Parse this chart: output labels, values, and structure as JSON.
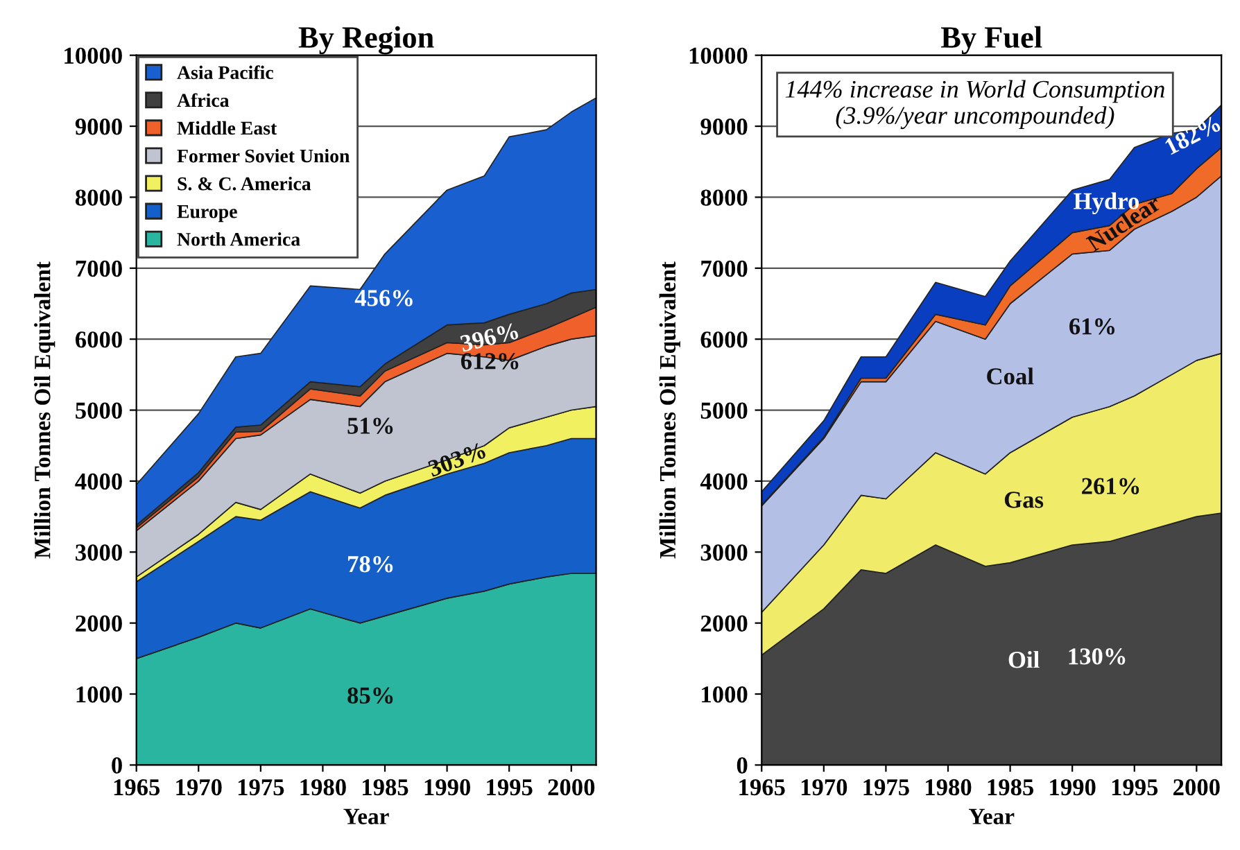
{
  "chart_data": [
    {
      "type": "area",
      "title": "By Region",
      "xlabel": "Year",
      "ylabel": "Million Tonnes Oil Equivalent",
      "stacked": true,
      "legend": "top left",
      "grid": "y",
      "x": [
        1965,
        1970,
        1973,
        1975,
        1979,
        1983,
        1985,
        1990,
        1993,
        1995,
        1998,
        2000,
        2002
      ],
      "xlim": [
        1965,
        2002
      ],
      "xticks": [
        1965,
        1970,
        1975,
        1980,
        1985,
        1990,
        1995,
        2000
      ],
      "ylim": [
        0,
        10000
      ],
      "yticks": [
        0,
        1000,
        2000,
        3000,
        4000,
        5000,
        6000,
        7000,
        8000,
        9000,
        10000
      ],
      "series": [
        {
          "name": "North America",
          "color": "#2ab5a0",
          "values": [
            1500,
            1800,
            2000,
            1930,
            2200,
            2000,
            2100,
            2350,
            2450,
            2550,
            2650,
            2700,
            2700
          ]
        },
        {
          "name": "Europe",
          "color": "#1560c8",
          "values": [
            1080,
            1350,
            1500,
            1520,
            1650,
            1620,
            1700,
            1750,
            1800,
            1850,
            1850,
            1900,
            1900
          ]
        },
        {
          "name": "S. & C. America",
          "color": "#f0f060",
          "values": [
            70,
            100,
            200,
            150,
            250,
            210,
            200,
            200,
            250,
            350,
            400,
            400,
            450
          ]
        },
        {
          "name": "Former Soviet Union",
          "color": "#c0c4d0",
          "values": [
            650,
            750,
            900,
            1050,
            1050,
            1220,
            1400,
            1500,
            1250,
            950,
            1000,
            1000,
            1000
          ]
        },
        {
          "name": "Middle East",
          "color": "#f0602a",
          "values": [
            40,
            60,
            90,
            50,
            150,
            150,
            150,
            150,
            170,
            250,
            250,
            300,
            400
          ]
        },
        {
          "name": "Africa",
          "color": "#404040",
          "values": [
            40,
            60,
            70,
            90,
            100,
            130,
            100,
            250,
            310,
            400,
            350,
            350,
            250
          ]
        },
        {
          "name": "Asia Pacific",
          "color": "#1a5fd0",
          "values": [
            570,
            830,
            990,
            1010,
            1350,
            1370,
            1550,
            1900,
            2070,
            2500,
            2450,
            2550,
            2700
          ]
        }
      ],
      "annotations": [
        "456%",
        "396%",
        "612%",
        "51%",
        "303%",
        "78%",
        "85%"
      ]
    },
    {
      "type": "area",
      "title": "By Fuel",
      "xlabel": "Year",
      "ylabel": "Million Tonnes Oil Equivalent",
      "stacked": true,
      "grid": "y",
      "x": [
        1965,
        1970,
        1973,
        1975,
        1979,
        1983,
        1985,
        1990,
        1993,
        1995,
        1998,
        2000,
        2002
      ],
      "xlim": [
        1965,
        2002
      ],
      "xticks": [
        1965,
        1970,
        1975,
        1980,
        1985,
        1990,
        1995,
        2000
      ],
      "ylim": [
        0,
        10000
      ],
      "yticks": [
        0,
        1000,
        2000,
        3000,
        4000,
        5000,
        6000,
        7000,
        8000,
        9000,
        10000
      ],
      "series": [
        {
          "name": "Oil",
          "color": "#454545",
          "values": [
            1550,
            2200,
            2750,
            2700,
            3100,
            2800,
            2850,
            3100,
            3150,
            3250,
            3400,
            3500,
            3550
          ]
        },
        {
          "name": "Gas",
          "color": "#f0ec6a",
          "values": [
            600,
            900,
            1050,
            1050,
            1300,
            1300,
            1550,
            1800,
            1900,
            1950,
            2100,
            2200,
            2250
          ]
        },
        {
          "name": "Coal",
          "color": "#b4bfe6",
          "values": [
            1500,
            1500,
            1600,
            1650,
            1850,
            1900,
            2100,
            2300,
            2200,
            2350,
            2300,
            2300,
            2500
          ]
        },
        {
          "name": "Nuclear",
          "color": "#f06a28",
          "values": [
            10,
            20,
            50,
            50,
            100,
            200,
            250,
            300,
            350,
            350,
            250,
            400,
            400
          ]
        },
        {
          "name": "Hydro",
          "color": "#0a3ec0",
          "values": [
            190,
            230,
            300,
            300,
            450,
            400,
            350,
            600,
            650,
            800,
            850,
            550,
            600
          ]
        }
      ],
      "annotations": [
        "144% increase in World Consumption (3.9%/year uncompounded)",
        "130%",
        "261%",
        "61%",
        "182%"
      ]
    }
  ]
}
